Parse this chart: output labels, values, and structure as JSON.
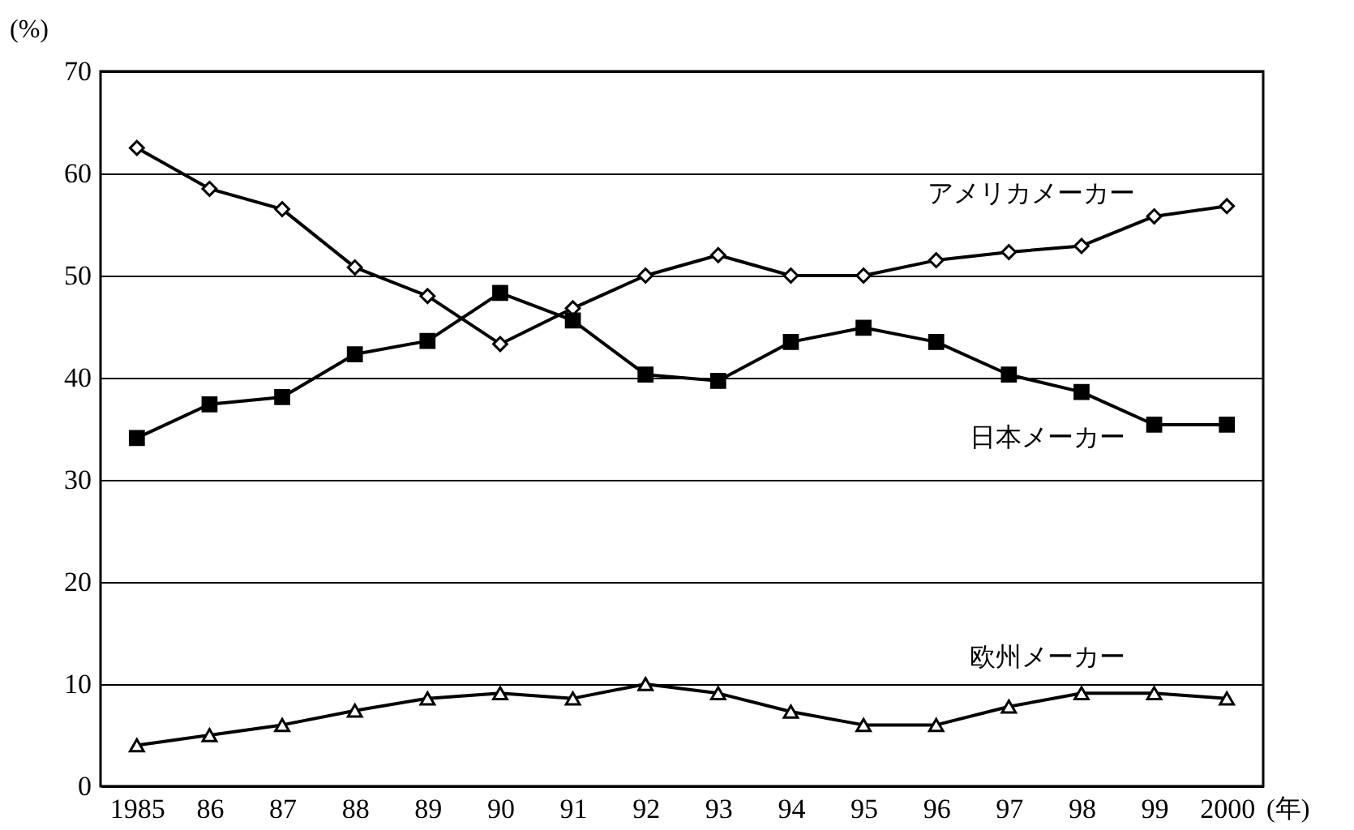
{
  "chart_data": {
    "type": "line",
    "categories": [
      "1985",
      "86",
      "87",
      "88",
      "89",
      "90",
      "91",
      "92",
      "93",
      "94",
      "95",
      "96",
      "97",
      "98",
      "99",
      "2000"
    ],
    "xlabel": "(年)",
    "ylabel": "(%)",
    "ylim": [
      0,
      70
    ],
    "yticks": [
      0,
      10,
      20,
      30,
      40,
      50,
      60,
      70
    ],
    "grid": "y",
    "series": [
      {
        "name": "アメリカメーカー",
        "color": "#000000",
        "marker": "diamond",
        "values": [
          62.5,
          58.5,
          56.5,
          50.8,
          48,
          43.3,
          46.8,
          50,
          52,
          50,
          50,
          51.5,
          52.3,
          52.9,
          55.8,
          56.8
        ]
      },
      {
        "name": "日本メーカー",
        "color": "#000000",
        "marker": "square",
        "values": [
          34.1,
          37.4,
          38.1,
          42.3,
          43.6,
          48.3,
          45.6,
          40.3,
          39.7,
          43.5,
          44.9,
          43.5,
          40.3,
          38.6,
          35.4,
          35.4
        ]
      },
      {
        "name": "欧州メーカー",
        "color": "#000000",
        "marker": "triangle",
        "values": [
          4,
          5,
          6,
          7.4,
          8.6,
          9.1,
          8.6,
          10,
          9.1,
          7.3,
          6,
          6,
          7.8,
          9.1,
          9.1,
          8.6
        ]
      }
    ]
  }
}
